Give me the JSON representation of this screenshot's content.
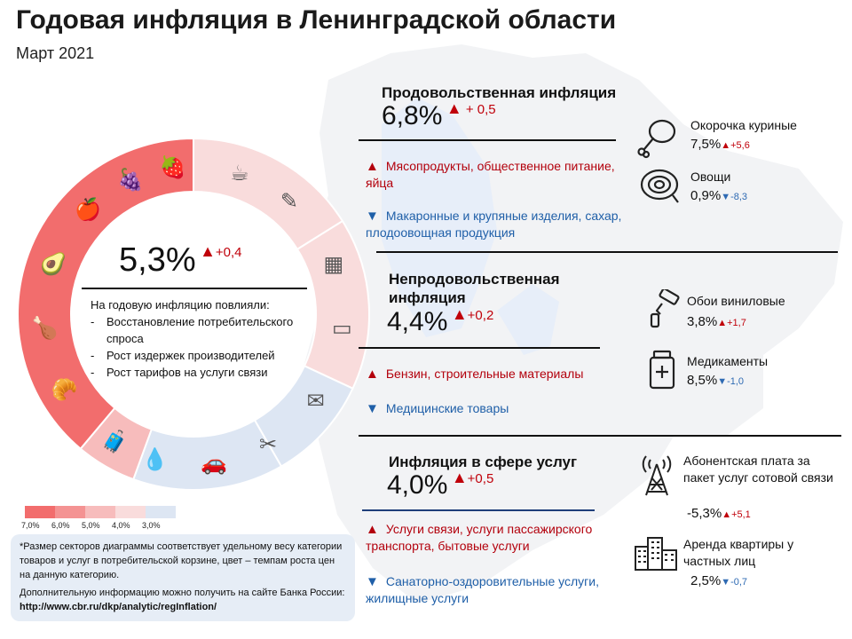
{
  "header": {
    "title": "Годовая инфляция в Ленинградской области",
    "subtitle": "Март 2021"
  },
  "overall": {
    "value": "5,3%",
    "change": "+0,4",
    "factors_title": "На годовую инфляцию повлияли:",
    "factors": [
      "Восстановление потребительского спроса",
      "Рост издержек производителей",
      "Рост тарифов на услуги связи"
    ]
  },
  "colors": {
    "c7": "#f26d6d",
    "c6": "#f49393",
    "c5": "#f7bcbc",
    "c4": "#f9dcdc",
    "c3": "#dde6f3",
    "up": "#c0000a",
    "down": "#2e6ab3"
  },
  "food": {
    "title": "Продовольственная инфляция",
    "value": "6,8%",
    "change": "+ 0,5",
    "up_text": "Мясопродукты, общественное питание, яйца",
    "down_text": "Макаронные и крупяные изделия, сахар, плодоовощная продукция",
    "items": [
      {
        "icon": "chicken-leg-icon",
        "label": "Окорочка куриные",
        "value": "7,5%",
        "change": "+5,6",
        "dir": "up"
      },
      {
        "icon": "onion-icon",
        "label": "Овощи",
        "value": "0,9%",
        "change": "-8,3",
        "dir": "down"
      }
    ]
  },
  "nonfood": {
    "title": "Непродовольственная инфляция",
    "value": "4,4%",
    "change": "+0,2",
    "up_text": "Бензин, строительные материалы",
    "down_text": "Медицинские товары",
    "items": [
      {
        "icon": "paint-roller-icon",
        "label": "Обои виниловые",
        "value": "3,8%",
        "change": "+1,7",
        "dir": "up"
      },
      {
        "icon": "medicine-bottle-icon",
        "label": "Медикаменты",
        "value": "8,5%",
        "change": "-1,0",
        "dir": "down"
      }
    ]
  },
  "services": {
    "title": "Инфляция в сфере услуг",
    "value": "4,0%",
    "change": "+0,5",
    "up_text": "Услуги связи, услуги пассажирского транспорта, бытовые услуги",
    "down_text": "Санаторно-оздоровительные услуги, жилищные услуги",
    "items": [
      {
        "icon": "cell-tower-icon",
        "label": "Абонентская плата за пакет услуг сотовой связи",
        "value": "-5,3%",
        "change": "+5,1",
        "dir": "up"
      },
      {
        "icon": "buildings-icon",
        "label": "Аренда квартиры у частных лиц",
        "value": "2,5%",
        "change": "-0,7",
        "dir": "down"
      }
    ]
  },
  "legend": [
    "7,0%",
    "6,0%",
    "5,0%",
    "4,0%",
    "3,0%"
  ],
  "note": {
    "text1": "*Размер секторов диаграммы соответствует удельному весу категории товаров и услуг в потребительской корзине, цвет – темпам роста цен на данную категорию.",
    "text2": "Дополнительную информацию можно получить на сайте Банка России:",
    "url": "http://www.cbr.ru/dkp/analytic/regInflation/"
  }
}
